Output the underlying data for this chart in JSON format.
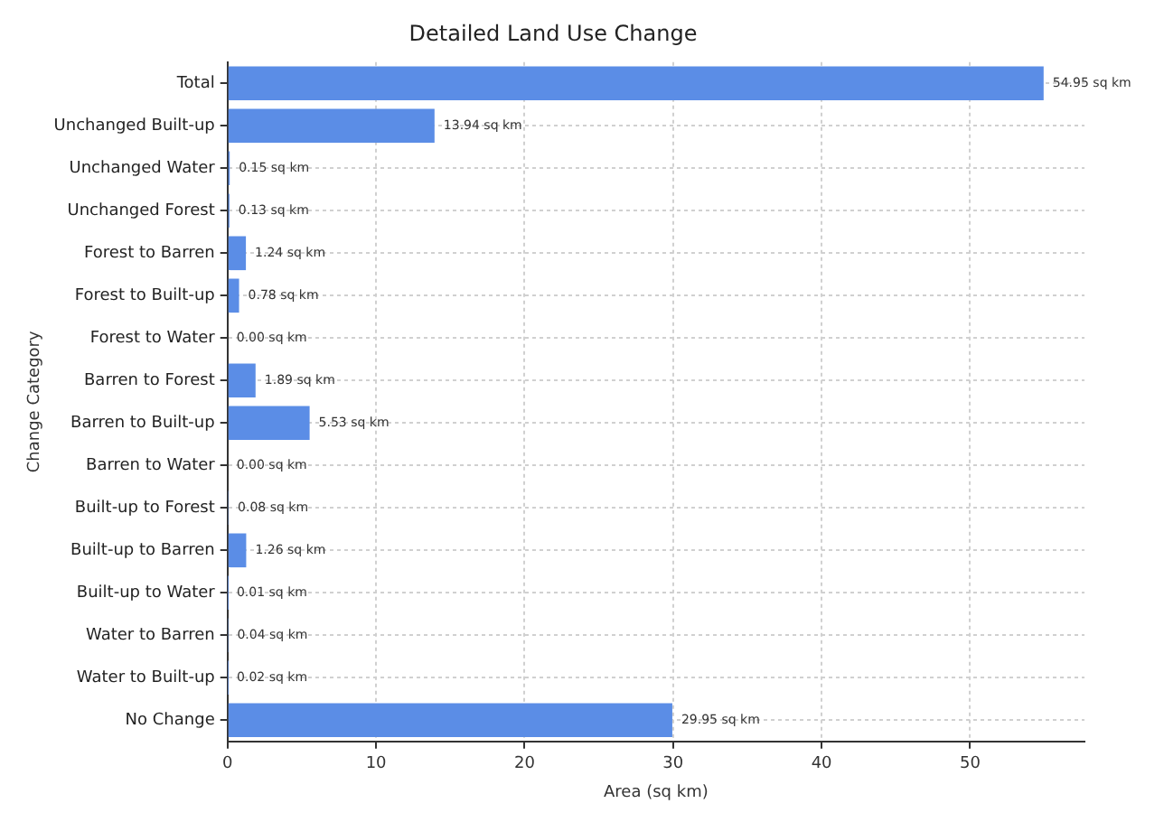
{
  "chart_data": {
    "type": "bar",
    "orientation": "horizontal",
    "title": "Detailed Land Use Change",
    "xlabel": "Area (sq km)",
    "ylabel": "Change Category",
    "categories": [
      "Total",
      "Unchanged Built-up",
      "Unchanged Water",
      "Unchanged Forest",
      "Forest to Barren",
      "Forest to Built-up",
      "Forest to Water",
      "Barren to Forest",
      "Barren to Built-up",
      "Barren to Water",
      "Built-up to Forest",
      "Built-up to Barren",
      "Built-up to Water",
      "Water to Barren",
      "Water to Built-up",
      "No Change"
    ],
    "values": [
      54.95,
      13.94,
      0.15,
      0.13,
      1.24,
      0.78,
      0.0,
      1.89,
      5.53,
      0.0,
      0.08,
      1.26,
      0.01,
      0.04,
      0.02,
      29.95
    ],
    "value_labels": [
      "54.95 sq km",
      "13.94 sq km",
      "0.15 sq km",
      "0.13 sq km",
      "1.24 sq km",
      "0.78 sq km",
      "0.00 sq km",
      "1.89 sq km",
      "5.53 sq km",
      "0.00 sq km",
      "0.08 sq km",
      "1.26 sq km",
      "0.01 sq km",
      "0.04 sq km",
      "0.02 sq km",
      "29.95 sq km"
    ],
    "color": "#5b8de6",
    "xlim": [
      0,
      57.7
    ],
    "xticks": [
      0,
      10,
      20,
      30,
      40,
      50
    ],
    "grid": true,
    "legend": false
  }
}
